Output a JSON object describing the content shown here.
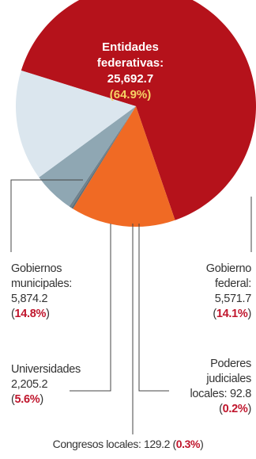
{
  "chart_data": {
    "type": "pie",
    "slices": [
      {
        "label": "Entidades federativas",
        "value": 25692.7,
        "value_label": "25,692.7",
        "percent_label": "64.9%",
        "color": "#b5121b"
      },
      {
        "label": "Gobierno federal",
        "value": 5571.7,
        "value_label": "5,571.7",
        "percent_label": "14.1%",
        "color": "#f06a24"
      },
      {
        "label": "Poderes judiciales locales",
        "value": 92.8,
        "value_label": "92.8",
        "percent_label": "0.2%",
        "color": "#5d6f7a"
      },
      {
        "label": "Congresos locales",
        "value": 129.2,
        "value_label": "129.2",
        "percent_label": "0.3%",
        "color": "#6f828d"
      },
      {
        "label": "Universidades",
        "value": 2205.2,
        "value_label": "2,205.2",
        "percent_label": "5.6%",
        "color": "#8fa7b3"
      },
      {
        "label": "Gobiernos municipales",
        "value": 5874.2,
        "value_label": "5,874.2",
        "percent_label": "14.8%",
        "color": "#dbe6ee"
      }
    ],
    "labels": {
      "entidades": {
        "line1": "Entidades",
        "line2": "federativas:",
        "value": "25,692.7",
        "pct": "(64.9%)"
      },
      "gobierno_federal": {
        "line1": "Gobierno",
        "line2": "federal:",
        "value": "5,571.7",
        "pct": "14.1%"
      },
      "municipales": {
        "line1": "Gobiernos",
        "line2": "municipales:",
        "value": "5,874.2",
        "pct": "14.8%"
      },
      "universidades": {
        "line1": "Universidades",
        "value": "2,205.2",
        "pct": "5.6%"
      },
      "judiciales": {
        "line1": "Poderes",
        "line2": "judiciales",
        "line3": "locales: 92.8",
        "pct": "0.2%"
      },
      "congresos": {
        "text": "Congresos locales: 129.2",
        "pct": "0.3%"
      }
    }
  }
}
